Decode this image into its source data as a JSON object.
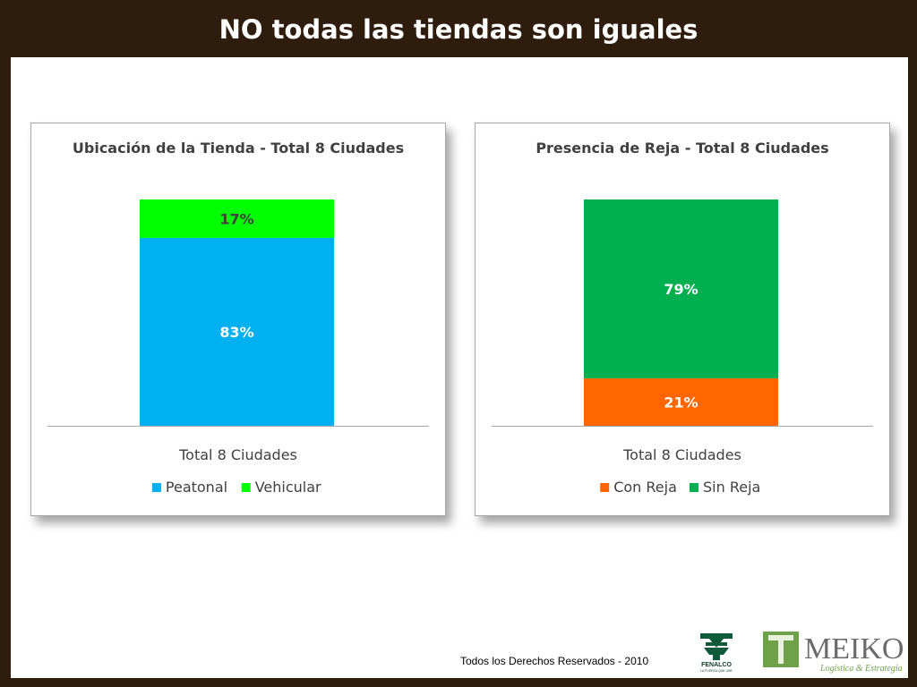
{
  "slide": {
    "title": "NO todas las tiendas son iguales",
    "footer": "Todos los Derechos Reservados - 2010",
    "logos": [
      {
        "name": "fenalco-logo",
        "text": "FENALCO",
        "subtext": "LA FUERZA QUE UNE"
      },
      {
        "name": "meiko-logo",
        "text": "MEIKO",
        "subtext": "Logística & Estrategia"
      }
    ]
  },
  "chart_data": [
    {
      "type": "bar",
      "stacked": true,
      "title": "Ubicación de la Tienda - Total 8 Ciudades",
      "categories": [
        "Total 8 Ciudades"
      ],
      "ylim": [
        0,
        100
      ],
      "legend_position": "bottom",
      "grid": false,
      "series": [
        {
          "name": "Peatonal",
          "values": [
            83
          ],
          "label": "83%",
          "color": "#00b0f0",
          "label_color": "#ffffff"
        },
        {
          "name": "Vehicular",
          "values": [
            17
          ],
          "label": "17%",
          "color": "#00ff00",
          "label_color": "#404040"
        }
      ]
    },
    {
      "type": "bar",
      "stacked": true,
      "title": "Presencia de Reja - Total 8 Ciudades",
      "categories": [
        "Total 8 Ciudades"
      ],
      "ylim": [
        0,
        100
      ],
      "legend_position": "bottom",
      "grid": false,
      "series": [
        {
          "name": "Con Reja",
          "values": [
            21
          ],
          "label": "21%",
          "color": "#ff6600",
          "label_color": "#ffffff"
        },
        {
          "name": "Sin Reja",
          "values": [
            79
          ],
          "label": "79%",
          "color": "#00b050",
          "label_color": "#ffffff"
        }
      ]
    }
  ]
}
